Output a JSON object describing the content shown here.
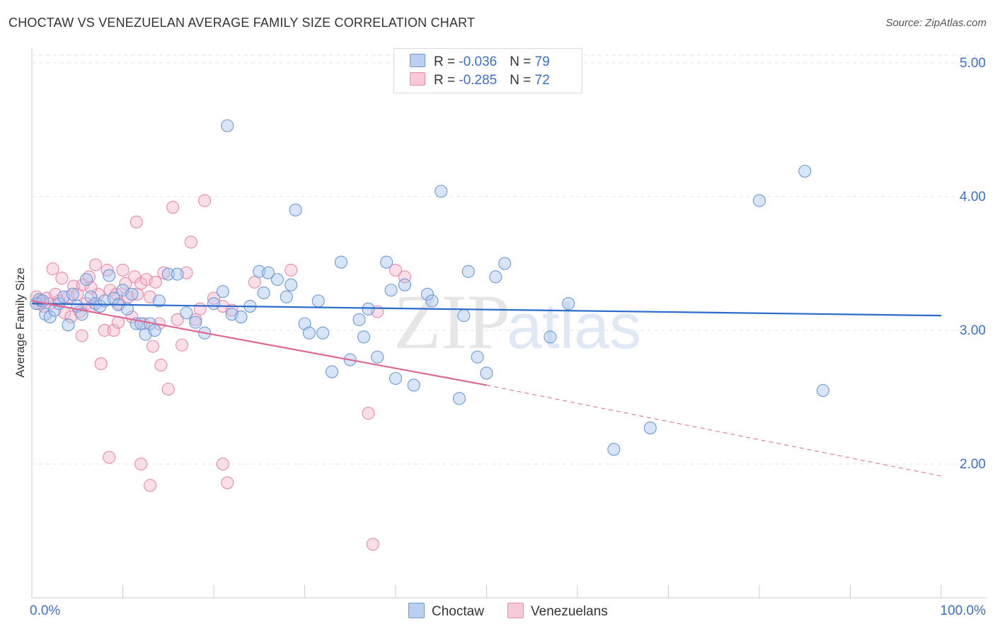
{
  "title": "CHOCTAW VS VENEZUELAN AVERAGE FAMILY SIZE CORRELATION CHART",
  "source": "Source: ZipAtlas.com",
  "watermark": {
    "zip": "ZIP",
    "atlas": "atlas"
  },
  "legend": {
    "choctaw": {
      "r_label": "R = ",
      "r_value": "-0.036",
      "n_label": "N = ",
      "n_value": "79"
    },
    "venezuelan": {
      "r_label": "R = ",
      "r_value": "-0.285",
      "n_label": "N = ",
      "n_value": "72"
    }
  },
  "colors": {
    "choctaw_fill": "#a9c6ef",
    "choctaw_stroke": "#6a9ad8",
    "choctaw_line": "#2a6acb",
    "venezuelan_fill": "#f6b8cb",
    "venezuelan_stroke": "#e88aa8",
    "venezuelan_line": "#e0678f",
    "axis_label": "#3a6fcb",
    "grid": "#e3e3e3"
  },
  "chart_data": {
    "type": "scatter",
    "title": "CHOCTAW VS VENEZUELAN AVERAGE FAMILY SIZE CORRELATION CHART",
    "xlabel": "",
    "ylabel": "Average Family Size",
    "xlim": [
      0,
      100
    ],
    "ylim": [
      1.0,
      5.1
    ],
    "x_tick_labels": [
      "0.0%",
      "100.0%"
    ],
    "y_ticks": [
      2.0,
      3.0,
      4.0,
      5.0
    ],
    "y_tick_labels": [
      "2.00",
      "3.00",
      "4.00",
      "5.00"
    ],
    "grid": true,
    "legend_position": "top-center",
    "series": [
      {
        "name": "Choctaw",
        "points": [
          [
            0.5,
            3.2
          ],
          [
            0.8,
            3.23
          ],
          [
            1.2,
            3.22
          ],
          [
            1.5,
            3.12
          ],
          [
            2.0,
            3.1
          ],
          [
            2.5,
            3.15
          ],
          [
            3.0,
            3.2
          ],
          [
            3.5,
            3.25
          ],
          [
            4.0,
            3.04
          ],
          [
            4.5,
            3.27
          ],
          [
            5.0,
            3.18
          ],
          [
            5.5,
            3.12
          ],
          [
            6.0,
            3.38
          ],
          [
            6.5,
            3.25
          ],
          [
            7.0,
            3.2
          ],
          [
            7.5,
            3.18
          ],
          [
            8.0,
            3.22
          ],
          [
            8.5,
            3.41
          ],
          [
            9.0,
            3.24
          ],
          [
            9.5,
            3.19
          ],
          [
            10.0,
            3.3
          ],
          [
            10.5,
            3.16
          ],
          [
            11.0,
            3.27
          ],
          [
            11.5,
            3.05
          ],
          [
            12.0,
            3.05
          ],
          [
            12.5,
            2.97
          ],
          [
            13.0,
            3.05
          ],
          [
            13.5,
            3.0
          ],
          [
            14.0,
            3.22
          ],
          [
            15.0,
            3.42
          ],
          [
            16.0,
            3.42
          ],
          [
            17.0,
            3.13
          ],
          [
            18.0,
            3.06
          ],
          [
            19.0,
            2.98
          ],
          [
            20.0,
            3.2
          ],
          [
            21.0,
            3.29
          ],
          [
            22.0,
            3.12
          ],
          [
            23.0,
            3.1
          ],
          [
            24.0,
            3.18
          ],
          [
            25.0,
            3.44
          ],
          [
            25.5,
            3.28
          ],
          [
            26.0,
            3.43
          ],
          [
            27.0,
            3.38
          ],
          [
            28.0,
            3.25
          ],
          [
            28.5,
            3.34
          ],
          [
            29.0,
            3.9
          ],
          [
            30.0,
            3.05
          ],
          [
            30.5,
            2.98
          ],
          [
            31.5,
            3.22
          ],
          [
            32.0,
            2.98
          ],
          [
            33.0,
            2.69
          ],
          [
            34.0,
            3.51
          ],
          [
            35.0,
            2.78
          ],
          [
            36.0,
            3.08
          ],
          [
            36.5,
            2.95
          ],
          [
            37.0,
            3.16
          ],
          [
            38.0,
            2.8
          ],
          [
            39.0,
            3.51
          ],
          [
            39.5,
            3.3
          ],
          [
            40.0,
            2.64
          ],
          [
            41.0,
            3.34
          ],
          [
            42.0,
            2.59
          ],
          [
            43.5,
            3.27
          ],
          [
            44.0,
            3.22
          ],
          [
            45.0,
            4.04
          ],
          [
            47.0,
            2.49
          ],
          [
            47.5,
            3.11
          ],
          [
            48.0,
            3.44
          ],
          [
            49.0,
            2.8
          ],
          [
            50.0,
            2.68
          ],
          [
            51.0,
            3.4
          ],
          [
            52.0,
            3.5
          ],
          [
            21.5,
            4.53
          ],
          [
            57.0,
            2.95
          ],
          [
            59.0,
            3.2
          ],
          [
            64.0,
            2.11
          ],
          [
            68.0,
            2.27
          ],
          [
            80.0,
            3.97
          ],
          [
            85.0,
            4.19
          ],
          [
            87.0,
            2.55
          ]
        ],
        "trend": {
          "x": [
            0,
            100
          ],
          "y": [
            3.2,
            3.11
          ]
        }
      },
      {
        "name": "Venezuelans",
        "points": [
          [
            0.5,
            3.25
          ],
          [
            0.8,
            3.2
          ],
          [
            1.0,
            3.22
          ],
          [
            1.3,
            3.18
          ],
          [
            1.6,
            3.24
          ],
          [
            2.0,
            3.2
          ],
          [
            2.3,
            3.46
          ],
          [
            2.6,
            3.27
          ],
          [
            3.0,
            3.22
          ],
          [
            3.3,
            3.39
          ],
          [
            3.6,
            3.13
          ],
          [
            4.0,
            3.25
          ],
          [
            4.3,
            3.1
          ],
          [
            4.6,
            3.33
          ],
          [
            5.0,
            3.27
          ],
          [
            5.3,
            3.14
          ],
          [
            5.6,
            3.34
          ],
          [
            6.0,
            3.2
          ],
          [
            6.3,
            3.4
          ],
          [
            6.6,
            3.18
          ],
          [
            7.0,
            3.49
          ],
          [
            7.3,
            3.27
          ],
          [
            7.6,
            2.75
          ],
          [
            8.0,
            3.0
          ],
          [
            8.3,
            3.45
          ],
          [
            8.6,
            3.3
          ],
          [
            9.0,
            3.0
          ],
          [
            9.3,
            3.27
          ],
          [
            9.6,
            3.2
          ],
          [
            10.0,
            3.45
          ],
          [
            10.3,
            3.35
          ],
          [
            10.6,
            3.25
          ],
          [
            11.0,
            3.1
          ],
          [
            11.3,
            3.4
          ],
          [
            11.6,
            3.27
          ],
          [
            12.0,
            3.35
          ],
          [
            12.3,
            3.05
          ],
          [
            12.6,
            3.38
          ],
          [
            13.0,
            3.25
          ],
          [
            13.3,
            2.88
          ],
          [
            13.6,
            3.36
          ],
          [
            14.0,
            3.05
          ],
          [
            14.5,
            3.43
          ],
          [
            15.0,
            2.56
          ],
          [
            15.5,
            3.92
          ],
          [
            16.0,
            3.08
          ],
          [
            16.5,
            2.89
          ],
          [
            17.0,
            3.43
          ],
          [
            17.5,
            3.66
          ],
          [
            18.0,
            3.08
          ],
          [
            18.5,
            3.16
          ],
          [
            19.0,
            3.97
          ],
          [
            20.0,
            3.24
          ],
          [
            21.0,
            3.18
          ],
          [
            22.0,
            3.15
          ],
          [
            11.5,
            3.81
          ],
          [
            8.5,
            2.05
          ],
          [
            12.0,
            2.0
          ],
          [
            13.0,
            1.84
          ],
          [
            21.0,
            2.0
          ],
          [
            21.5,
            1.86
          ],
          [
            24.5,
            3.36
          ],
          [
            28.5,
            3.45
          ],
          [
            37.0,
            2.38
          ],
          [
            37.5,
            1.4
          ],
          [
            38.0,
            3.14
          ],
          [
            40.0,
            3.45
          ],
          [
            41.0,
            3.4
          ],
          [
            5.5,
            2.96
          ],
          [
            6.5,
            3.32
          ],
          [
            9.5,
            3.06
          ],
          [
            14.2,
            2.74
          ]
        ],
        "trend": {
          "x": [
            0,
            50
          ],
          "y": [
            3.22,
            2.59
          ]
        },
        "trend_dashed": {
          "x": [
            50,
            100
          ],
          "y": [
            2.59,
            1.91
          ]
        }
      }
    ]
  }
}
